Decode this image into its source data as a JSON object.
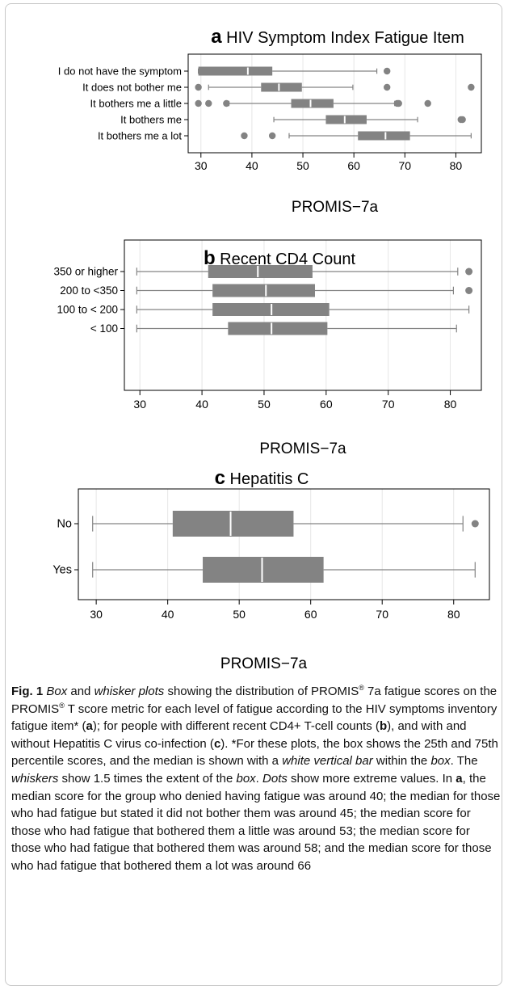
{
  "chart_data": [
    {
      "type": "box",
      "panel_letter": "a",
      "title": "HIV Symptom Index Fatigue Item",
      "xlabel": "PROMIS−7a",
      "ylabel": "",
      "xlim": [
        27.5,
        85
      ],
      "xticks": [
        30,
        40,
        50,
        60,
        70,
        80
      ],
      "grid": true,
      "categories": [
        "I do not have the symptom",
        "It does not bother me",
        "It bothers me a little",
        "It bothers me",
        "It bothers me a lot"
      ],
      "series": [
        {
          "category": "I do not have the symptom",
          "whisker_low": 29.5,
          "q1": 29.5,
          "median": 39.2,
          "q3": 44,
          "whisker_high": 64.5,
          "outliers": [
            66.5
          ]
        },
        {
          "category": "It does not bother me",
          "whisker_low": 31.5,
          "q1": 41.8,
          "median": 45.3,
          "q3": 49.8,
          "whisker_high": 59.8,
          "outliers": [
            29.5,
            66.5,
            83
          ]
        },
        {
          "category": "It bothers me a little",
          "whisker_low": 35.5,
          "q1": 47.7,
          "median": 51.5,
          "q3": 56,
          "whisker_high": 68,
          "outliers": [
            29.5,
            31.5,
            35,
            68.5,
            68.8,
            74.5
          ]
        },
        {
          "category": "It bothers me",
          "whisker_low": 44.3,
          "q1": 54.5,
          "median": 58.2,
          "q3": 62.5,
          "whisker_high": 72.5,
          "outliers": [
            81,
            81.3
          ]
        },
        {
          "category": "It bothers me a lot",
          "whisker_low": 47.3,
          "q1": 60.8,
          "median": 66.2,
          "q3": 71,
          "whisker_high": 83,
          "outliers": [
            38.5,
            44
          ]
        }
      ]
    },
    {
      "type": "box",
      "panel_letter": "b",
      "title": "Recent CD4 Count",
      "xlabel": "PROMIS−7a",
      "ylabel": "",
      "xlim": [
        27.5,
        85
      ],
      "xticks": [
        30,
        40,
        50,
        60,
        70,
        80
      ],
      "grid": true,
      "categories": [
        "350 or higher",
        "200 to <350",
        "100 to < 200",
        "< 100"
      ],
      "series": [
        {
          "category": "350 or higher",
          "whisker_low": 29.5,
          "q1": 41,
          "median": 49,
          "q3": 57.8,
          "whisker_high": 81.2,
          "outliers": [
            83
          ]
        },
        {
          "category": "200 to <350",
          "whisker_low": 29.5,
          "q1": 41.7,
          "median": 50.3,
          "q3": 58.2,
          "whisker_high": 80.5,
          "outliers": [
            83
          ]
        },
        {
          "category": "100 to < 200",
          "whisker_low": 29.5,
          "q1": 41.7,
          "median": 51.2,
          "q3": 60.5,
          "whisker_high": 83,
          "outliers": []
        },
        {
          "category": "< 100",
          "whisker_low": 29.5,
          "q1": 44.2,
          "median": 51.2,
          "q3": 60.2,
          "whisker_high": 81,
          "outliers": []
        }
      ]
    },
    {
      "type": "box",
      "panel_letter": "c",
      "title": "Hepatitis  C",
      "xlabel": "PROMIS−7a",
      "ylabel": "",
      "xlim": [
        27.5,
        85
      ],
      "xticks": [
        30,
        40,
        50,
        60,
        70,
        80
      ],
      "grid": true,
      "categories": [
        "No",
        "Yes"
      ],
      "series": [
        {
          "category": "No",
          "whisker_low": 29.5,
          "q1": 40.7,
          "median": 48.8,
          "q3": 57.6,
          "whisker_high": 81.3,
          "outliers": [
            83
          ]
        },
        {
          "category": "Yes",
          "whisker_low": 29.5,
          "q1": 44.9,
          "median": 53.2,
          "q3": 61.8,
          "whisker_high": 83,
          "outliers": []
        }
      ]
    }
  ],
  "colors": {
    "box_fill": "#838383",
    "outlier_fill": "#838383",
    "whisker": "#838383",
    "median_bar": "#ffffff",
    "grid": "#e6e6e6",
    "frame": "#c8c8c8"
  },
  "caption": {
    "label": "Fig. 1",
    "seg1": "  ",
    "em_box": "Box",
    "seg2": " and ",
    "em_whisker_plots": "whisker plots",
    "seg3": " showing the distribution of PROMIS",
    "reg1": "®",
    "seg4": " 7a fatigue scores on the PROMIS",
    "reg2": "®",
    "seg5": " T score metric for each level of fatigue according to the HIV symptoms inventory fatigue item* (",
    "ref_a": "a",
    "seg6": "); for people with different recent CD4+ T-cell counts (",
    "ref_b": "b",
    "seg7": "), and with and without Hepatitis C virus co-infection (",
    "ref_c": "c",
    "seg8": "). *For these plots, the box shows the 25th and 75th percentile scores, and the median is shown with a ",
    "em_white_bar": "white vertical bar",
    "seg9": " within the ",
    "em_box2": "box",
    "seg10": ". The ",
    "em_whiskers": "whiskers",
    "seg11": " show 1.5 times the extent of the ",
    "em_box3": "box",
    "seg12": ". ",
    "em_dots": "Dots",
    "seg13": " show more extreme values. In ",
    "ref_a2": "a",
    "seg14": ", the median score for the group who denied having fatigue was around 40; the median for those who had fatigue but stated it did not bother them was around 45; the median score for those who had fatigue that bothered them a little was around 53; the median score for those who had fatigue that bothered them was around 58; and the median score for those who had fatigue that bothered them a lot was around 66"
  }
}
